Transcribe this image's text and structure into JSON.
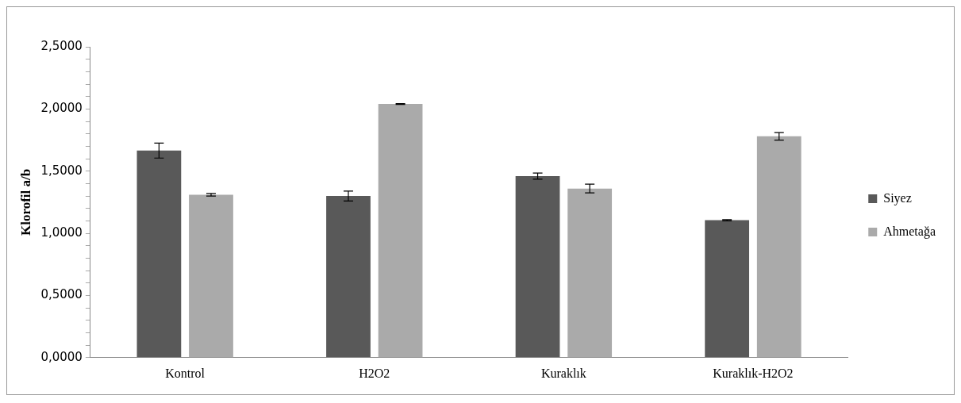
{
  "chart_data": {
    "type": "bar",
    "ylabel": "Klorofil a/b",
    "categories": [
      "Kontrol",
      "H2O2",
      "Kuraklık",
      "Kuraklık-H2O2"
    ],
    "series": [
      {
        "name": "Siyez",
        "color": "#595959",
        "values": [
          1.665,
          1.3,
          1.46,
          1.105
        ],
        "errors": [
          0.06,
          0.04,
          0.025,
          0.005
        ]
      },
      {
        "name": "Ahmetağa",
        "color": "#aaaaaa",
        "values": [
          1.31,
          2.04,
          1.36,
          1.78
        ],
        "errors": [
          0.01,
          0.003,
          0.035,
          0.03
        ]
      }
    ],
    "ylim": [
      0,
      2.5
    ],
    "yticks": [
      {
        "value": 0,
        "label": "0,0000"
      },
      {
        "value": 0.1,
        "label": null
      },
      {
        "value": 0.2,
        "label": null
      },
      {
        "value": 0.3,
        "label": null
      },
      {
        "value": 0.4,
        "label": null
      },
      {
        "value": 0.5,
        "label": "0,5000"
      },
      {
        "value": 0.6,
        "label": null
      },
      {
        "value": 0.7,
        "label": null
      },
      {
        "value": 0.8,
        "label": null
      },
      {
        "value": 0.9,
        "label": null
      },
      {
        "value": 1,
        "label": "1,0000"
      },
      {
        "value": 1.1,
        "label": null
      },
      {
        "value": 1.2,
        "label": null
      },
      {
        "value": 1.3,
        "label": null
      },
      {
        "value": 1.4,
        "label": null
      },
      {
        "value": 1.5,
        "label": "1,5000"
      },
      {
        "value": 1.6,
        "label": null
      },
      {
        "value": 1.7,
        "label": null
      },
      {
        "value": 1.8,
        "label": null
      },
      {
        "value": 1.9,
        "label": null
      },
      {
        "value": 2,
        "label": "2,0000"
      },
      {
        "value": 2.1,
        "label": null
      },
      {
        "value": 2.2,
        "label": null
      },
      {
        "value": 2.3,
        "label": null
      },
      {
        "value": 2.4,
        "label": null
      },
      {
        "value": 2.5,
        "label": "2,5000"
      }
    ],
    "grid": false,
    "legend": "right"
  }
}
